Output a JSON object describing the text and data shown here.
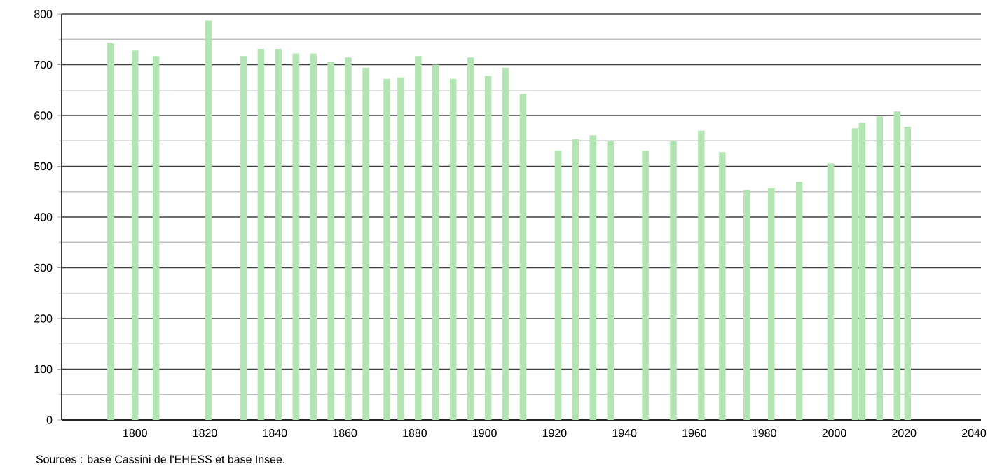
{
  "chart_data": {
    "type": "bar",
    "x": [
      1793,
      1800,
      1806,
      1821,
      1831,
      1836,
      1841,
      1846,
      1851,
      1856,
      1861,
      1866,
      1872,
      1876,
      1881,
      1886,
      1891,
      1896,
      1901,
      1906,
      1911,
      1921,
      1926,
      1931,
      1936,
      1946,
      1954,
      1962,
      1968,
      1975,
      1982,
      1990,
      1999,
      2006,
      2008,
      2013,
      2018,
      2021
    ],
    "values": [
      742,
      728,
      717,
      787,
      717,
      731,
      731,
      722,
      722,
      706,
      714,
      694,
      672,
      675,
      717,
      700,
      672,
      714,
      678,
      694,
      642,
      531,
      553,
      561,
      550,
      531,
      550,
      570,
      528,
      453,
      458,
      469,
      506,
      575,
      586,
      598,
      608,
      578
    ],
    "color": "#b3e5b3",
    "xlim": [
      1779,
      2042
    ],
    "xticks": [
      1800,
      1820,
      1840,
      1860,
      1880,
      1900,
      1920,
      1940,
      1960,
      1980,
      2000,
      2020,
      2040
    ],
    "ylim": [
      0,
      800
    ],
    "yticks": [
      0,
      {
        "value": 50,
        "label": null
      },
      100,
      {
        "value": 150,
        "label": null
      },
      200,
      {
        "value": 250,
        "label": null
      },
      300,
      {
        "value": 350,
        "label": null
      },
      400,
      {
        "value": 450,
        "label": null
      },
      500,
      {
        "value": 550,
        "label": null
      },
      600,
      {
        "value": 650,
        "label": null
      },
      700,
      {
        "value": 750,
        "label": null
      },
      800
    ],
    "grid": "y",
    "annotations": [
      "Sources : base Cassini de l'EHESS et base Insee."
    ]
  }
}
